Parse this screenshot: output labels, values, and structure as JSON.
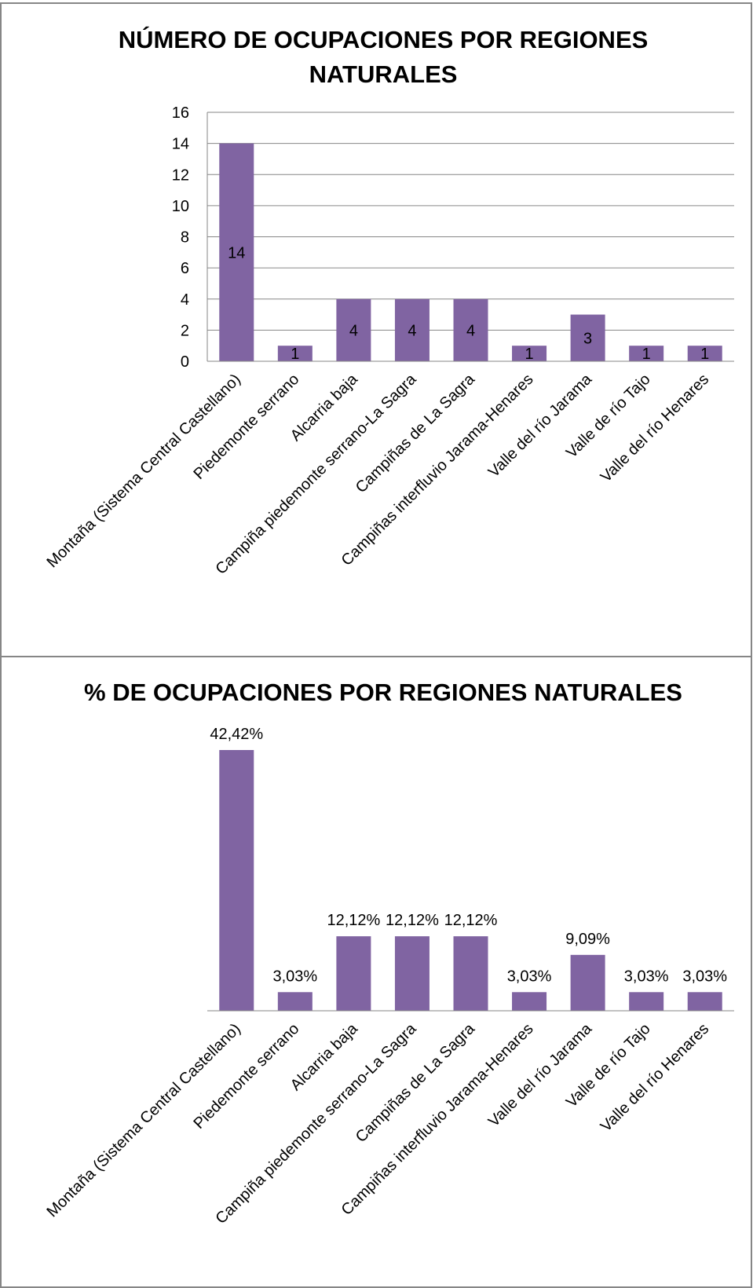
{
  "colors": {
    "bar": "#8064a2",
    "grid": "#868686",
    "frame": "#868686",
    "text": "#000000"
  },
  "chart_data": [
    {
      "type": "bar",
      "title": "NÚMERO DE OCUPACIONES POR REGIONES NATURALES",
      "title_lines": [
        "NÚMERO DE OCUPACIONES POR REGIONES",
        "NATURALES"
      ],
      "categories": [
        "Montaña (Sistema Central Castellano)",
        "Piedemonte serrano",
        "Alcarria baja",
        "Campiña piedemonte serrano-La Sagra",
        "Campiñas de La Sagra",
        "Campiñas interfluvio Jarama-Henares",
        "Valle del río Jarama",
        "Valle de río Tajo",
        "Valle del río Henares"
      ],
      "values": [
        14,
        1,
        4,
        4,
        4,
        1,
        3,
        1,
        1
      ],
      "data_labels": [
        "14",
        "1",
        "4",
        "4",
        "4",
        "1",
        "3",
        "1",
        "1"
      ],
      "ylim": [
        0,
        16
      ],
      "yticks": [
        0,
        2,
        4,
        6,
        8,
        10,
        12,
        14,
        16
      ],
      "ytick_labels": [
        "0",
        "2",
        "4",
        "6",
        "8",
        "10",
        "12",
        "14",
        "16"
      ],
      "grid": true,
      "legend": "none",
      "xlabel": "",
      "ylabel": ""
    },
    {
      "type": "bar",
      "title": "% DE OCUPACIONES POR REGIONES NATURALES",
      "title_lines": [
        "% DE OCUPACIONES POR REGIONES NATURALES"
      ],
      "categories": [
        "Montaña (Sistema Central Castellano)",
        "Piedemonte serrano",
        "Alcarria baja",
        "Campiña piedemonte serrano-La Sagra",
        "Campiñas de La Sagra",
        "Campiñas interfluvio Jarama-Henares",
        "Valle del río Jarama",
        "Valle de río Tajo",
        "Valle del río Henares"
      ],
      "values": [
        42.42,
        3.03,
        12.12,
        12.12,
        12.12,
        3.03,
        9.09,
        3.03,
        3.03
      ],
      "data_labels": [
        "42,42%",
        "3,03%",
        "12,12%",
        "12,12%",
        "12,12%",
        "3,03%",
        "9,09%",
        "3,03%",
        "3,03%"
      ],
      "ylim": [
        0,
        42.42
      ],
      "grid": false,
      "legend": "none",
      "xlabel": "",
      "ylabel": ""
    }
  ]
}
